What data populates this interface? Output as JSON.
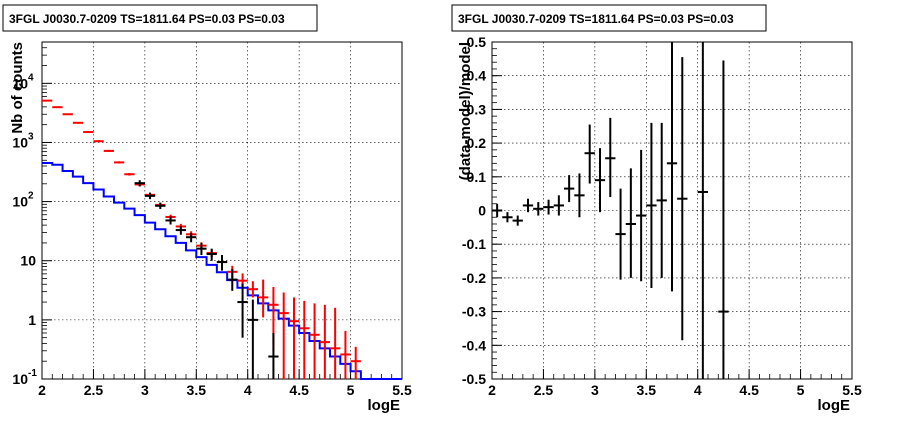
{
  "chart_data": [
    {
      "type": "line",
      "title": "3FGL J0030.7-0209 TS=1811.64 PS=0.03 PS=0.03",
      "xlabel": "logE",
      "ylabel": "Nb of counts",
      "xlim": [
        2,
        5.5
      ],
      "ylim": [
        0.1,
        50000
      ],
      "yscale": "log",
      "grid": true,
      "xticks": [
        "2",
        "2.5",
        "3",
        "3.5",
        "4",
        "4.5",
        "5",
        "5.5"
      ],
      "yticks": [
        {
          "value": 0.1,
          "label": "10",
          "exp": "-1"
        },
        {
          "value": 1,
          "label": "1",
          "exp": ""
        },
        {
          "value": 10,
          "label": "10",
          "exp": ""
        },
        {
          "value": 100,
          "label": "10",
          "exp": "2"
        },
        {
          "value": 1000,
          "label": "10",
          "exp": "3"
        },
        {
          "value": 10000,
          "label": "10",
          "exp": "4"
        }
      ],
      "bin_edges": [
        2.0,
        2.1,
        2.2,
        2.3,
        2.4,
        2.5,
        2.6,
        2.7,
        2.8,
        2.9,
        3.0,
        3.1,
        3.2,
        3.3,
        3.4,
        3.5,
        3.6,
        3.7,
        3.8,
        3.9,
        4.0,
        4.1,
        4.2,
        4.3,
        4.4,
        4.5,
        4.6,
        4.7,
        4.8,
        4.9,
        5.0,
        5.1,
        5.2,
        5.3,
        5.4,
        5.5
      ],
      "series": [
        {
          "color": "#0000ff",
          "style": "step",
          "values": [
            450,
            420,
            330,
            265,
            205,
            160,
            122,
            96,
            76,
            59,
            44,
            34,
            26,
            20,
            15,
            11.5,
            8.5,
            6.4,
            4.7,
            3.5,
            2.6,
            1.9,
            1.45,
            1.05,
            0.8,
            0.6,
            0.44,
            0.33,
            0.24,
            0.18,
            0.135,
            0.1,
            0.1,
            0.1,
            0.1
          ]
        },
        {
          "color": "#ff0000",
          "style": "errorbar",
          "values": [
            5100,
            3950,
            3000,
            2150,
            1500,
            1050,
            720,
            460,
            290,
            195,
            130,
            88,
            55,
            38,
            28,
            18,
            13.5,
            9.5,
            6.5,
            4.6,
            3.3,
            2.4,
            1.8,
            1.3,
            0.95,
            0.72,
            0.56,
            0.42,
            0.33,
            0.26,
            0.2
          ],
          "err_low": [
            5000,
            3850,
            2920,
            2080,
            1450,
            1010,
            690,
            440,
            275,
            183,
            121,
            81,
            50,
            34,
            24.5,
            15.6,
            11.5,
            7.9,
            5.2,
            3.5,
            2.4,
            1.1,
            0.3,
            0.1,
            0.1,
            0.1,
            0.1,
            0.1,
            0.1,
            0.1,
            0.1
          ],
          "err_high": [
            5200,
            4050,
            3080,
            2220,
            1550,
            1090,
            750,
            480,
            305,
            207,
            139,
            95,
            60,
            42,
            31.5,
            20.5,
            15.7,
            11.5,
            8.2,
            6.1,
            4.5,
            4.8,
            3.6,
            2.9,
            2.4,
            2.1,
            1.9,
            1.8,
            1.6,
            0.65,
            0.35
          ]
        },
        {
          "color": "#000000",
          "style": "errorbar",
          "values": [
            null,
            null,
            null,
            null,
            null,
            null,
            null,
            null,
            null,
            205,
            125,
            85,
            48,
            33,
            25,
            16,
            13,
            9.5,
            4.8,
            2.0,
            1.0,
            null,
            0.24,
            null,
            null,
            null,
            null,
            null,
            null,
            null,
            null
          ],
          "err_low": [
            null,
            null,
            null,
            null,
            null,
            null,
            null,
            null,
            null,
            180,
            110,
            75,
            41,
            27.5,
            20.5,
            12.5,
            10,
            6.8,
            3.1,
            0.5,
            0.1,
            null,
            0.1,
            null,
            null,
            null,
            null,
            null,
            null,
            null,
            null
          ],
          "err_high": [
            null,
            null,
            null,
            null,
            null,
            null,
            null,
            null,
            null,
            230,
            142,
            96,
            56,
            38.5,
            29.5,
            20,
            16,
            12.5,
            7.2,
            4.1,
            2.2,
            null,
            0.6,
            null,
            null,
            null,
            null,
            null,
            null,
            null,
            null
          ]
        }
      ]
    },
    {
      "type": "scatter",
      "title": "3FGL J0030.7-0209 TS=1811.64 PS=0.03 PS=0.03",
      "xlabel": "logE",
      "ylabel": "(data-model)/model",
      "xlim": [
        2,
        5.5
      ],
      "ylim": [
        -0.5,
        0.5
      ],
      "grid": true,
      "xticks": [
        "2",
        "2.5",
        "3",
        "3.5",
        "4",
        "4.5",
        "5",
        "5.5"
      ],
      "yticks": [
        "-0.5",
        "-0.4",
        "-0.3",
        "-0.2",
        "-0.1",
        "0",
        "0.1",
        "0.2",
        "0.3",
        "0.4",
        "0.5"
      ],
      "bin_edges": [
        2.0,
        2.1,
        2.2,
        2.3,
        2.4,
        2.5,
        2.6,
        2.7,
        2.8,
        2.9,
        3.0,
        3.1,
        3.2,
        3.3,
        3.4,
        3.5,
        3.6,
        3.7,
        3.8,
        3.9,
        4.0,
        4.1,
        4.2,
        4.3
      ],
      "series": [
        {
          "color": "#000000",
          "style": "errorbar",
          "values": [
            0.0,
            -0.02,
            -0.03,
            0.015,
            0.005,
            0.01,
            0.015,
            0.065,
            0.045,
            0.17,
            0.09,
            0.155,
            -0.07,
            -0.04,
            -0.015,
            0.015,
            0.03,
            0.14,
            0.035,
            null,
            0.055,
            null,
            -0.3
          ],
          "err_low": [
            -0.02,
            -0.035,
            -0.045,
            -0.005,
            -0.015,
            -0.012,
            -0.015,
            0.025,
            -0.02,
            0.08,
            -0.005,
            0.04,
            -0.205,
            -0.2,
            -0.21,
            -0.23,
            -0.2,
            -0.24,
            -0.385,
            null,
            -0.5,
            null,
            -0.5
          ],
          "err_high": [
            0.02,
            -0.005,
            -0.015,
            0.035,
            0.025,
            0.032,
            0.045,
            0.105,
            0.11,
            0.255,
            0.185,
            0.275,
            0.065,
            0.125,
            0.18,
            0.26,
            0.26,
            0.5,
            0.455,
            null,
            0.5,
            null,
            0.445
          ]
        }
      ]
    }
  ]
}
